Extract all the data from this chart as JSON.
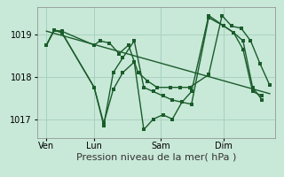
{
  "background_color": "#c8e8d8",
  "grid_color": "#a8d4c0",
  "line_color": "#1a5c2a",
  "xlabel": "Pression niveau de la mer( hPa )",
  "xlabel_fontsize": 8,
  "yticks": [
    1017,
    1018,
    1019
  ],
  "ylim": [
    1016.55,
    1019.65
  ],
  "xtick_labels": [
    "Ven",
    "Lun",
    "Sam",
    "Dim"
  ],
  "xtick_positions": [
    0.5,
    3.0,
    6.5,
    9.8
  ],
  "vline_positions": [
    0.5,
    3.0,
    6.5,
    9.8
  ],
  "xlim": [
    0,
    12.5
  ],
  "series1_x": [
    0.5,
    0.9,
    1.3,
    3.0,
    3.3,
    3.8,
    4.3,
    4.8,
    5.3,
    5.8,
    6.3,
    7.0,
    7.5,
    8.0,
    9.0,
    9.7,
    10.2,
    10.7,
    11.2,
    11.7,
    12.2
  ],
  "series1_y": [
    1018.75,
    1019.1,
    1019.08,
    1018.75,
    1018.85,
    1018.8,
    1018.55,
    1018.75,
    1018.1,
    1017.9,
    1017.75,
    1017.75,
    1017.75,
    1017.75,
    1018.05,
    1019.45,
    1019.2,
    1019.15,
    1018.85,
    1018.3,
    1017.8
  ],
  "series2_x": [
    0.5,
    0.9,
    1.3,
    3.0,
    3.5,
    4.0,
    4.5,
    5.1,
    5.6,
    6.1,
    6.6,
    7.1,
    7.6,
    8.1,
    9.0,
    9.8,
    10.3,
    10.8,
    11.3,
    11.8
  ],
  "series2_y": [
    1018.75,
    1019.1,
    1019.05,
    1017.75,
    1016.9,
    1017.7,
    1018.1,
    1018.35,
    1016.75,
    1017.0,
    1017.1,
    1017.0,
    1017.4,
    1017.35,
    1019.4,
    1019.2,
    1019.05,
    1018.65,
    1017.65,
    1017.55
  ],
  "series3_x": [
    0.5,
    0.9,
    1.3,
    3.0,
    3.5,
    4.0,
    4.5,
    5.1,
    5.6,
    6.1,
    6.6,
    7.1,
    7.6,
    8.1,
    9.0,
    9.8,
    10.3,
    10.8,
    11.3,
    11.8
  ],
  "series3_y": [
    1018.75,
    1019.1,
    1019.05,
    1017.75,
    1016.85,
    1018.1,
    1018.45,
    1018.85,
    1017.75,
    1017.65,
    1017.55,
    1017.45,
    1017.4,
    1017.65,
    1019.45,
    1019.2,
    1019.05,
    1018.85,
    1017.75,
    1017.45
  ],
  "trend_x": [
    0.5,
    12.2
  ],
  "trend_y": [
    1019.08,
    1017.6
  ]
}
